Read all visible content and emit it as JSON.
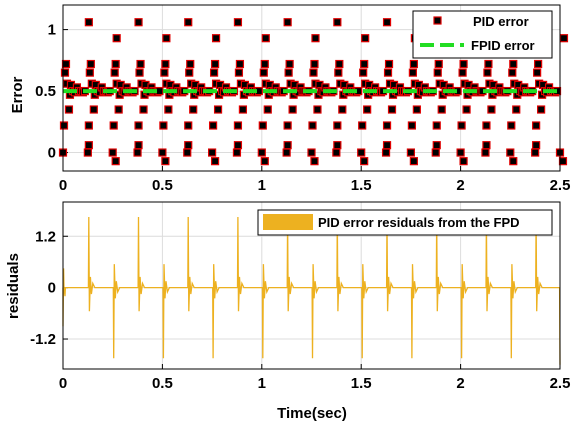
{
  "chart_data": [
    {
      "type": "scatter",
      "ylabel": "Error",
      "xlabel": "",
      "xlim": [
        0,
        2.5
      ],
      "ylim": [
        -0.15,
        1.2
      ],
      "xticks": [
        "0",
        "0.5",
        "1",
        "1.5",
        "2",
        "2.5"
      ],
      "yticks": [
        "0",
        "0.5",
        "1"
      ],
      "grid": true,
      "legend_position": "top-right",
      "period_sec": 0.125,
      "series": [
        {
          "name": "PID error",
          "marker": "square",
          "color": "#000000",
          "edge_color": "#e00000",
          "pattern_x": [
            0.0,
            0.005,
            0.01,
            0.015,
            0.02,
            0.03,
            0.035,
            0.04,
            0.05,
            0.06,
            0.07,
            0.08,
            0.09,
            0.1,
            0.11
          ],
          "pattern_y": [
            0.0,
            0.22,
            0.65,
            0.72,
            0.56,
            0.35,
            0.47,
            0.55,
            0.5,
            0.49,
            0.53,
            0.5,
            0.5,
            0.49,
            0.5
          ],
          "extra_points": [
            {
              "x": 0.13,
              "y": 1.06
            },
            {
              "x": 0.13,
              "y": 0.06
            },
            {
              "x": 0.26,
              "y": -0.07
            },
            {
              "x": 0.27,
              "y": 0.93
            }
          ]
        },
        {
          "name": "FPID error",
          "style": "dashed",
          "color": "#22dd22",
          "x": [
            0,
            2.5
          ],
          "y": [
            0.5,
            0.5
          ]
        }
      ]
    },
    {
      "type": "line",
      "ylabel": "residuals",
      "xlabel": "Time(sec)",
      "xlim": [
        0,
        2.5
      ],
      "ylim": [
        -1.9,
        2.0
      ],
      "xticks": [
        "0",
        "0.5",
        "1",
        "1.5",
        "2",
        "2.5"
      ],
      "yticks": [
        "1.2",
        "0",
        "-1.2"
      ],
      "grid": true,
      "legend_position": "top-right",
      "period_sec": 0.125,
      "series": [
        {
          "name": "PID error residuals from the FPD",
          "color": "#edb120",
          "spike_pattern": [
            {
              "dx": 0.0,
              "y": 1.65
            },
            {
              "dx": 0.003,
              "y": -0.55
            },
            {
              "dx": 0.008,
              "y": 0.25
            },
            {
              "dx": 0.013,
              "y": -0.15
            },
            {
              "dx": 0.02,
              "y": 0.1
            }
          ],
          "first_spike_x": 0.13,
          "start_values": [
            {
              "x": 0.0,
              "y": -0.9
            },
            {
              "x": 0.003,
              "y": 0.45
            },
            {
              "x": 0.01,
              "y": -0.2
            }
          ],
          "end_value": {
            "x": 2.5,
            "y": -1.8
          }
        }
      ]
    }
  ]
}
